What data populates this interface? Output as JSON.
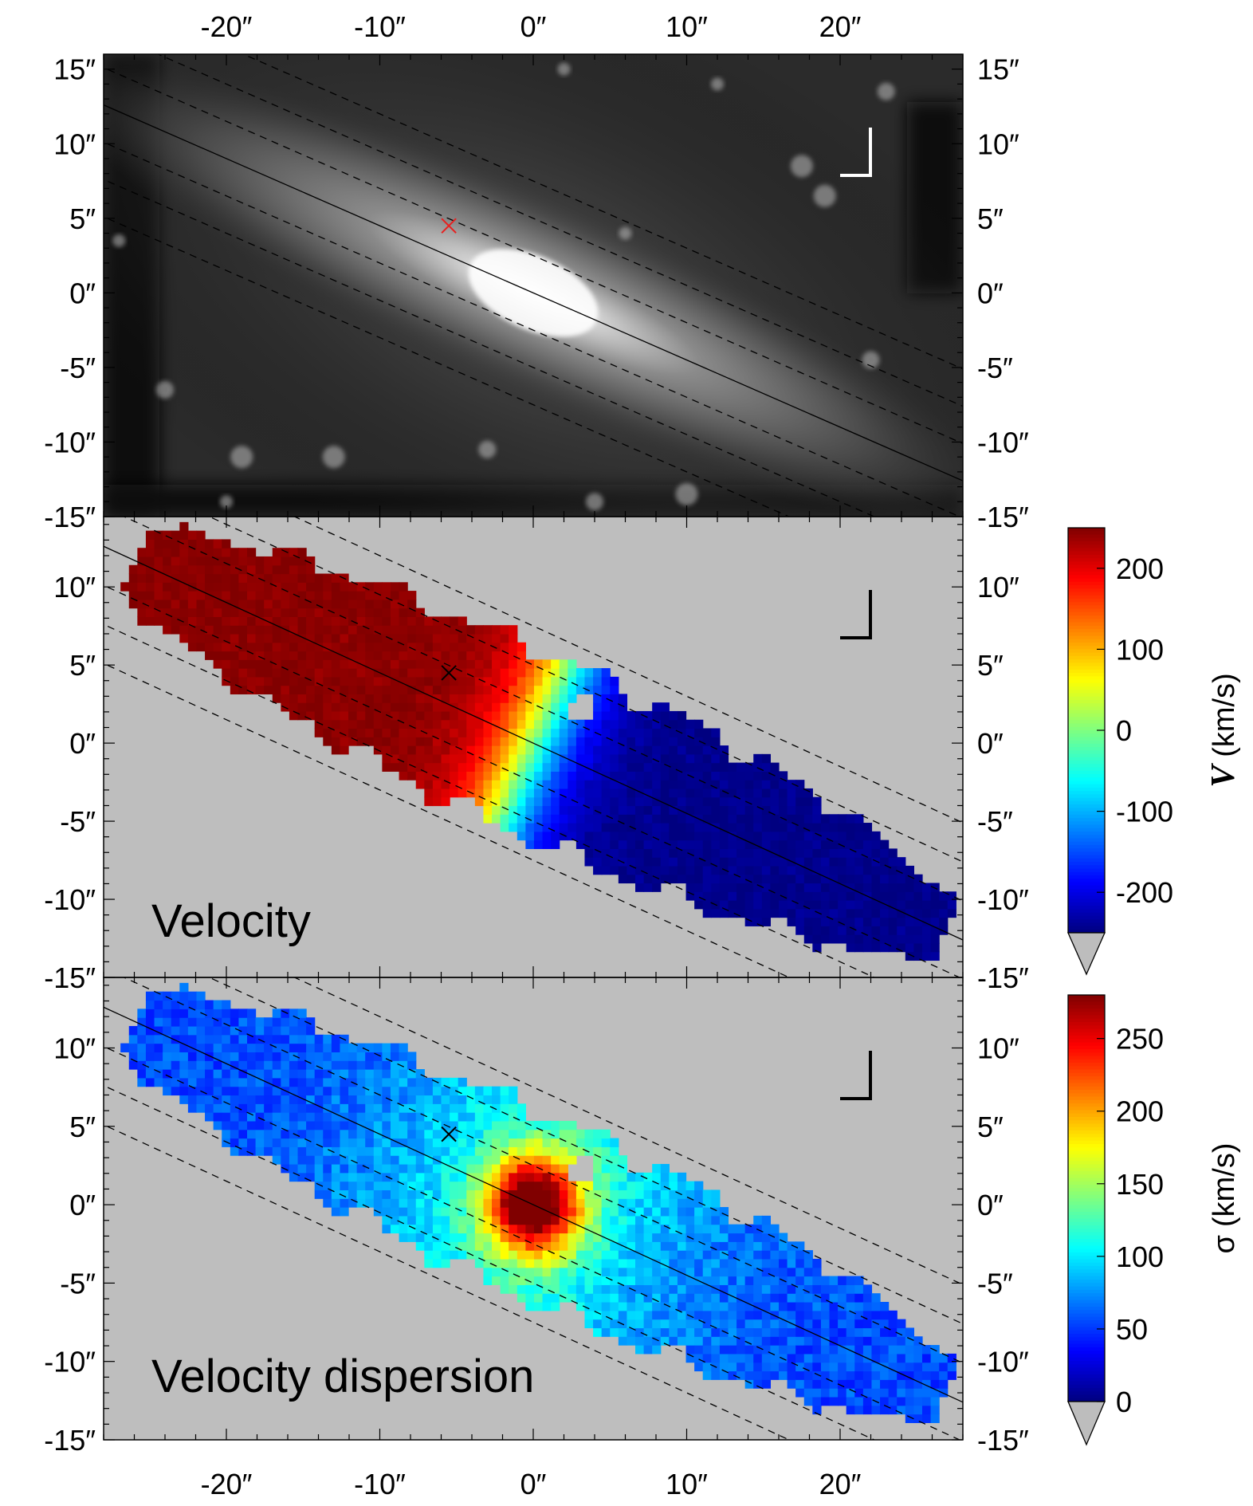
{
  "chart_data": [
    {
      "type": "heatmap",
      "panel": "image",
      "colormap": "grayscale",
      "xlim": [
        -28,
        28
      ],
      "ylim": [
        -15,
        16
      ],
      "x_ticks": [
        {
          "value": -20,
          "label": "-20″"
        },
        {
          "value": -10,
          "label": "-10″"
        },
        {
          "value": 0,
          "label": "0″"
        },
        {
          "value": 10,
          "label": "10″"
        },
        {
          "value": 20,
          "label": "20″"
        }
      ],
      "y_ticks": [
        {
          "value": 15,
          "label": "15″"
        },
        {
          "value": 10,
          "label": "10″"
        },
        {
          "value": 5,
          "label": "5″"
        },
        {
          "value": 0,
          "label": "0″"
        },
        {
          "value": -5,
          "label": "-5″"
        },
        {
          "value": -10,
          "label": "-10″"
        },
        {
          "value": -15,
          "label": "-15″"
        }
      ],
      "cross_marker": {
        "x": -5.5,
        "y": 4.5,
        "color": "#e8201f"
      },
      "major_axis_slope": -0.45,
      "offset_lines": [
        -7.5,
        -5,
        -2.5,
        2.5,
        5,
        7.5
      ],
      "compass_color": "#ffffff"
    },
    {
      "type": "heatmap",
      "panel": "velocity",
      "label": "Velocity",
      "xlim": [
        -28,
        28
      ],
      "ylim": [
        -15,
        14.5
      ],
      "y_ticks": [
        {
          "value": 10,
          "label": "10″"
        },
        {
          "value": 5,
          "label": "5″"
        },
        {
          "value": 0,
          "label": "0″"
        },
        {
          "value": -5,
          "label": "-5″"
        },
        {
          "value": -10,
          "label": "-10″"
        },
        {
          "value": -15,
          "label": "-15″"
        }
      ],
      "cross_marker": {
        "x": -5.5,
        "y": 4.5,
        "color": "#000000"
      },
      "colorbar": {
        "title_symbol": "V",
        "title_unit": "(km/s)",
        "range": [
          -250,
          250
        ],
        "ticks": [
          {
            "value": 200,
            "label": "200"
          },
          {
            "value": 100,
            "label": "100"
          },
          {
            "value": 0,
            "label": "0"
          },
          {
            "value": -100,
            "label": "-100"
          },
          {
            "value": -200,
            "label": "-200"
          }
        ]
      },
      "amplitude": 245,
      "background_color": "#bebebe"
    },
    {
      "type": "heatmap",
      "panel": "dispersion",
      "label": "Velocity dispersion",
      "xlim": [
        -28,
        28
      ],
      "ylim": [
        -15,
        14.5
      ],
      "x_ticks": [
        {
          "value": -20,
          "label": "-20″"
        },
        {
          "value": -10,
          "label": "-10″"
        },
        {
          "value": 0,
          "label": "0″"
        },
        {
          "value": 10,
          "label": "10″"
        },
        {
          "value": 20,
          "label": "20″"
        }
      ],
      "y_ticks": [
        {
          "value": 10,
          "label": "10″"
        },
        {
          "value": 5,
          "label": "5″"
        },
        {
          "value": 0,
          "label": "0″"
        },
        {
          "value": -5,
          "label": "-5″"
        },
        {
          "value": -10,
          "label": "-10″"
        },
        {
          "value": -15,
          "label": "-15″"
        }
      ],
      "cross_marker": {
        "x": -5.5,
        "y": 4.5,
        "color": "#000000"
      },
      "colorbar": {
        "title_symbol": "σ",
        "title_unit": "(km/s)",
        "range": [
          0,
          280
        ],
        "ticks": [
          {
            "value": 250,
            "label": "250"
          },
          {
            "value": 200,
            "label": "200"
          },
          {
            "value": 150,
            "label": "150"
          },
          {
            "value": 100,
            "label": "100"
          },
          {
            "value": 50,
            "label": "50"
          },
          {
            "value": 0,
            "label": "0"
          }
        ]
      },
      "central_sigma": 270,
      "outer_sigma": 55,
      "background_color": "#bebebe"
    }
  ]
}
